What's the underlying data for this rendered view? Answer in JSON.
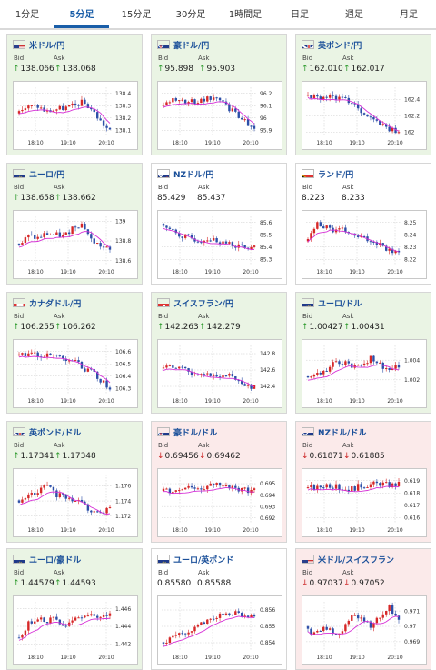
{
  "tabs": [
    "1分足",
    "5分足",
    "15分足",
    "30分足",
    "1時間足",
    "日足",
    "週足",
    "月足"
  ],
  "active_tab": 1,
  "labels": {
    "bid": "Bid",
    "ask": "Ask"
  },
  "colors": {
    "up": "#2c9a2c",
    "down": "#cc2222",
    "candle_up": "#d62828",
    "candle_down": "#2d4fa8",
    "ma": "#d62fd6"
  },
  "cards": [
    {
      "pair": "米ドル/円",
      "flag": "us",
      "bid": "138.066",
      "ask": "138.068",
      "dir": "up",
      "chart_data": {
        "type": "candlestick",
        "x_ticks": [
          "18:10",
          "19:10",
          "20:10"
        ],
        "y_ticks": [
          "138.1",
          "138.2",
          "138.3",
          "138.4"
        ],
        "ylim": [
          138.05,
          138.45
        ]
      }
    },
    {
      "pair": "豪ドル/円",
      "flag": "au",
      "bid": "95.898",
      "ask": "95.903",
      "dir": "up",
      "chart_data": {
        "type": "candlestick",
        "x_ticks": [
          "18:10",
          "19:10",
          "20:10"
        ],
        "y_ticks": [
          "95.9",
          "96",
          "96.1",
          "96.2"
        ],
        "ylim": [
          95.85,
          96.25
        ]
      }
    },
    {
      "pair": "英ポンド/円",
      "flag": "gb",
      "bid": "162.010",
      "ask": "162.017",
      "dir": "up",
      "chart_data": {
        "type": "candlestick",
        "x_ticks": [
          "18:10",
          "19:10",
          "20:10"
        ],
        "y_ticks": [
          "162",
          "162.2",
          "162.4"
        ],
        "ylim": [
          161.95,
          162.55
        ]
      }
    },
    {
      "pair": "ユーロ/円",
      "flag": "eu",
      "bid": "138.658",
      "ask": "138.662",
      "dir": "up",
      "chart_data": {
        "type": "candlestick",
        "x_ticks": [
          "18:10",
          "19:10",
          "20:10"
        ],
        "y_ticks": [
          "138.6",
          "138.8",
          "139"
        ],
        "ylim": [
          138.55,
          139.05
        ]
      }
    },
    {
      "pair": "NZドル/円",
      "flag": "nz",
      "bid": "85.429",
      "ask": "85.437",
      "dir": "neutral",
      "chart_data": {
        "type": "candlestick",
        "x_ticks": [
          "18:10",
          "19:10",
          "20:10"
        ],
        "y_ticks": [
          "85.3",
          "85.4",
          "85.5",
          "85.6"
        ],
        "ylim": [
          85.25,
          85.65
        ]
      }
    },
    {
      "pair": "ランド/円",
      "flag": "za",
      "bid": "8.223",
      "ask": "8.233",
      "dir": "neutral",
      "chart_data": {
        "type": "candlestick",
        "x_ticks": [
          "18:10",
          "19:10",
          "20:10"
        ],
        "y_ticks": [
          "8.22",
          "8.23",
          "8.24",
          "8.25"
        ],
        "ylim": [
          8.215,
          8.255
        ]
      }
    },
    {
      "pair": "カナダドル/円",
      "flag": "ca",
      "bid": "106.255",
      "ask": "106.262",
      "dir": "up",
      "chart_data": {
        "type": "candlestick",
        "x_ticks": [
          "18:10",
          "19:10",
          "20:10"
        ],
        "y_ticks": [
          "106.3",
          "106.4",
          "106.5",
          "106.6"
        ],
        "ylim": [
          106.25,
          106.65
        ]
      }
    },
    {
      "pair": "スイスフラン/円",
      "flag": "ch",
      "bid": "142.263",
      "ask": "142.279",
      "dir": "up",
      "chart_data": {
        "type": "candlestick",
        "x_ticks": [
          "18:10",
          "19:10",
          "20:10"
        ],
        "y_ticks": [
          "142.4",
          "142.6",
          "142.8"
        ],
        "ylim": [
          142.3,
          142.9
        ]
      }
    },
    {
      "pair": "ユーロ/ドル",
      "flag": "eu",
      "bid": "1.00427",
      "ask": "1.00431",
      "dir": "up",
      "chart_data": {
        "type": "candlestick",
        "x_ticks": [
          "18:10",
          "19:10",
          "20:10"
        ],
        "y_ticks": [
          "1.002",
          "1.004"
        ],
        "ylim": [
          1.0005,
          1.0055
        ]
      }
    },
    {
      "pair": "英ポンド/ドル",
      "flag": "gb",
      "bid": "1.17341",
      "ask": "1.17348",
      "dir": "up",
      "chart_data": {
        "type": "candlestick",
        "x_ticks": [
          "18:10",
          "19:10",
          "20:10"
        ],
        "y_ticks": [
          "1.172",
          "1.174",
          "1.176"
        ],
        "ylim": [
          1.171,
          1.1775
        ]
      }
    },
    {
      "pair": "豪ドル/ドル",
      "flag": "au",
      "bid": "0.69456",
      "ask": "0.69462",
      "dir": "down",
      "chart_data": {
        "type": "candlestick",
        "x_ticks": [
          "18:10",
          "19:10",
          "20:10"
        ],
        "y_ticks": [
          "0.692",
          "0.693",
          "0.694",
          "0.695"
        ],
        "ylim": [
          0.6915,
          0.6958
        ]
      }
    },
    {
      "pair": "NZドル/ドル",
      "flag": "nz",
      "bid": "0.61871",
      "ask": "0.61885",
      "dir": "down",
      "chart_data": {
        "type": "candlestick",
        "x_ticks": [
          "18:10",
          "19:10",
          "20:10"
        ],
        "y_ticks": [
          "0.616",
          "0.617",
          "0.618",
          "0.619"
        ],
        "ylim": [
          0.6155,
          0.6195
        ]
      }
    },
    {
      "pair": "ユーロ/豪ドル",
      "flag": "eu",
      "bid": "1.44579",
      "ask": "1.44593",
      "dir": "up",
      "chart_data": {
        "type": "candlestick",
        "x_ticks": [
          "18:10",
          "19:10",
          "20:10"
        ],
        "y_ticks": [
          "1.442",
          "1.444",
          "1.446"
        ],
        "ylim": [
          1.4412,
          1.4468
        ]
      }
    },
    {
      "pair": "ユーロ/英ポンド",
      "flag": "eu",
      "bid": "0.85580",
      "ask": "0.85588",
      "dir": "neutral",
      "chart_data": {
        "type": "candlestick",
        "x_ticks": [
          "18:10",
          "19:10",
          "20:10"
        ],
        "y_ticks": [
          "0.854",
          "0.855",
          "0.856"
        ],
        "ylim": [
          0.8535,
          0.8565
        ]
      }
    },
    {
      "pair": "米ドル/スイスフラン",
      "flag": "us",
      "bid": "0.97037",
      "ask": "0.97052",
      "dir": "down",
      "chart_data": {
        "type": "candlestick",
        "x_ticks": [
          "18:10",
          "19:10",
          "20:10"
        ],
        "y_ticks": [
          "0.969",
          "0.97",
          "0.971"
        ],
        "ylim": [
          0.9684,
          0.9716
        ]
      }
    }
  ]
}
